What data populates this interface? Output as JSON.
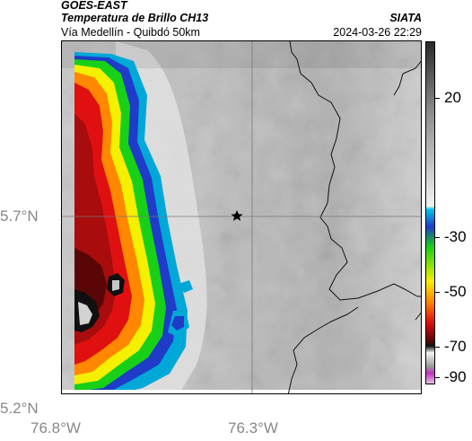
{
  "header": {
    "satellite": "GOES-EAST",
    "product": "Temperatura de Brillo CH13",
    "region": "Vía Medellín - Quibdó 50km",
    "agency": "SIATA",
    "timestamp": "2024-03-26 22:29"
  },
  "map": {
    "marker": "star-marker",
    "lat_ticks": [
      "5.7°N",
      "5.2°N"
    ],
    "lon_ticks": [
      "76.8°W",
      "76.3°W"
    ]
  },
  "colorbar": {
    "ticks": [
      "20",
      "-30",
      "-50",
      "-70",
      "-90"
    ],
    "colors": {
      "warm_gray": "#d8d8d8",
      "dark_gray": "#3a3a3a",
      "cyan": "#00a8d8",
      "blue": "#1e3cc8",
      "green": "#18d018",
      "yellow": "#f4f000",
      "orange": "#ff8800",
      "red": "#e01010",
      "dark_red": "#7a0808",
      "black": "#101010",
      "white": "#f4f4f4",
      "magenta": "#c030c0"
    }
  }
}
